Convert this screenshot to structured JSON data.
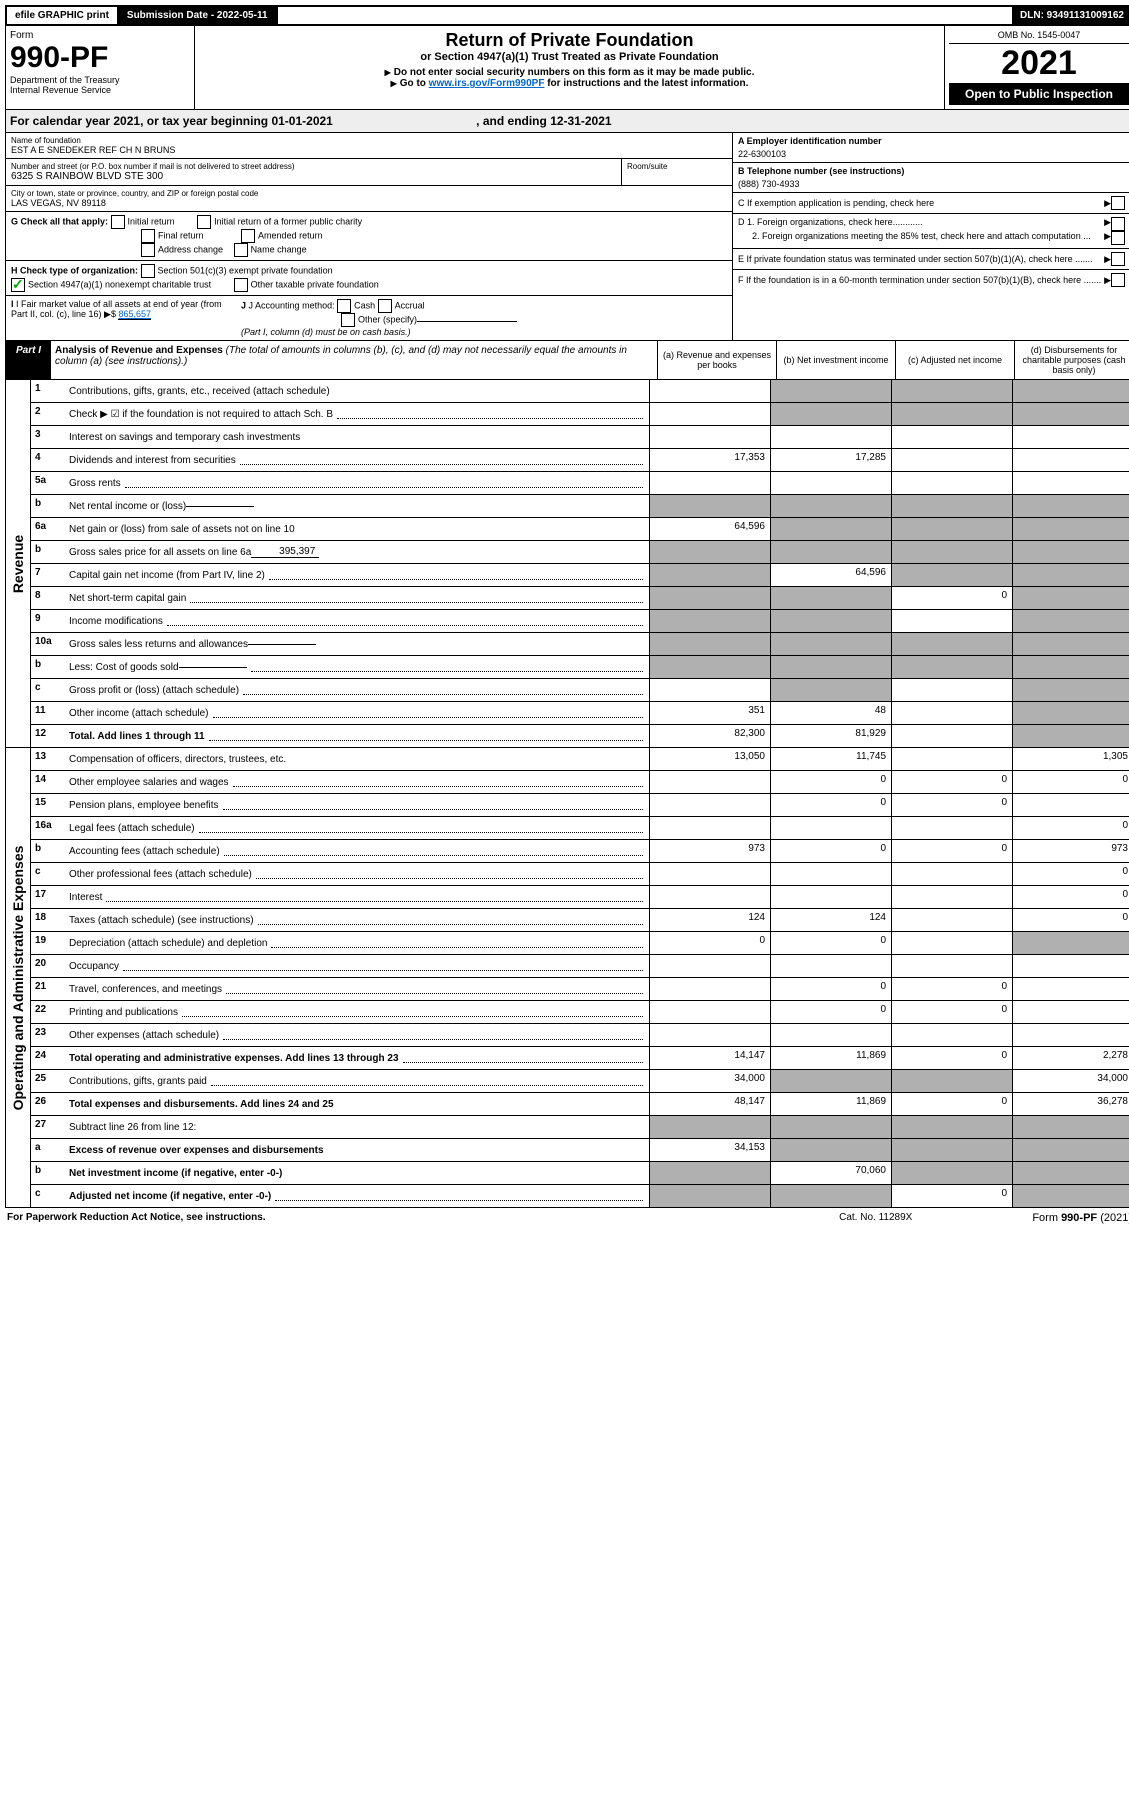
{
  "top": {
    "efile": "efile GRAPHIC print",
    "submission_label": "Submission Date - 2022-05-11",
    "dln": "DLN: 93491131009162"
  },
  "header": {
    "form_word": "Form",
    "form_number": "990-PF",
    "dept": "Department of the Treasury",
    "irs": "Internal Revenue Service",
    "title": "Return of Private Foundation",
    "subtitle": "or Section 4947(a)(1) Trust Treated as Private Foundation",
    "note1": "Do not enter social security numbers on this form as it may be made public.",
    "note2_pre": "Go to ",
    "note2_link": "www.irs.gov/Form990PF",
    "note2_post": " for instructions and the latest information.",
    "omb": "OMB No. 1545-0047",
    "year": "2021",
    "open": "Open to Public Inspection"
  },
  "cal_year": {
    "pre": "For calendar year 2021, or tax year beginning ",
    "begin": "01-01-2021",
    "mid": " , and ending ",
    "end": "12-31-2021"
  },
  "info": {
    "name_label": "Name of foundation",
    "name": "EST A E SNEDEKER REF CH N BRUNS",
    "addr_label": "Number and street (or P.O. box number if mail is not delivered to street address)",
    "addr": "6325 S RAINBOW BLVD STE 300",
    "room_label": "Room/suite",
    "city_label": "City or town, state or province, country, and ZIP or foreign postal code",
    "city": "LAS VEGAS, NV  89118",
    "ein_label": "A Employer identification number",
    "ein": "22-6300103",
    "phone_label": "B Telephone number (see instructions)",
    "phone": "(888) 730-4933",
    "c": "C If exemption application is pending, check here",
    "d1": "D 1. Foreign organizations, check here............",
    "d2": "2. Foreign organizations meeting the 85% test, check here and attach computation ...",
    "e": "E If private foundation status was terminated under section 507(b)(1)(A), check here .......",
    "f": "F If the foundation is in a 60-month termination under section 507(b)(1)(B), check here .......",
    "g_label": "G Check all that apply:",
    "g_opts": [
      "Initial return",
      "Initial return of a former public charity",
      "Final return",
      "Amended return",
      "Address change",
      "Name change"
    ],
    "h_label": "H Check type of organization:",
    "h_opts": [
      "Section 501(c)(3) exempt private foundation",
      "Section 4947(a)(1) nonexempt charitable trust",
      "Other taxable private foundation"
    ],
    "i_label": "I Fair market value of all assets at end of year (from Part II, col. (c), line 16)",
    "i_val": "865,657",
    "j_label": "J Accounting method:",
    "j_opts": [
      "Cash",
      "Accrual",
      "Other (specify)"
    ],
    "j_note": "(Part I, column (d) must be on cash basis.)"
  },
  "part1": {
    "label": "Part I",
    "title": "Analysis of Revenue and Expenses",
    "title_note": " (The total of amounts in columns (b), (c), and (d) may not necessarily equal the amounts in column (a) (see instructions).)",
    "col_a": "(a) Revenue and expenses per books",
    "col_b": "(b) Net investment income",
    "col_c": "(c) Adjusted net income",
    "col_d": "(d) Disbursements for charitable purposes (cash basis only)"
  },
  "sides": {
    "revenue": "Revenue",
    "expenses": "Operating and Administrative Expenses"
  },
  "rows": {
    "r1": {
      "n": "1",
      "l": "Contributions, gifts, grants, etc., received (attach schedule)",
      "a": "",
      "b": "",
      "c": "",
      "d": "",
      "bs": true,
      "cs": true,
      "ds": true
    },
    "r2": {
      "n": "2",
      "l": "Check ▶ ☑ if the foundation is not required to attach Sch. B",
      "a": "",
      "b": "",
      "c": "",
      "d": "",
      "bs": true,
      "cs": true,
      "ds": true,
      "dots": true
    },
    "r3": {
      "n": "3",
      "l": "Interest on savings and temporary cash investments",
      "a": "",
      "b": "",
      "c": "",
      "d": ""
    },
    "r4": {
      "n": "4",
      "l": "Dividends and interest from securities",
      "a": "17,353",
      "b": "17,285",
      "c": "",
      "d": "",
      "dots": true
    },
    "r5a": {
      "n": "5a",
      "l": "Gross rents",
      "a": "",
      "b": "",
      "c": "",
      "d": "",
      "dots": true
    },
    "r5b": {
      "n": "b",
      "l": "Net rental income or (loss)",
      "a": "",
      "b": "",
      "c": "",
      "d": "",
      "as": true,
      "bs": true,
      "cs": true,
      "ds": true,
      "inline": ""
    },
    "r6a": {
      "n": "6a",
      "l": "Net gain or (loss) from sale of assets not on line 10",
      "a": "64,596",
      "b": "",
      "c": "",
      "d": "",
      "bs": true,
      "cs": true,
      "ds": true
    },
    "r6b": {
      "n": "b",
      "l": "Gross sales price for all assets on line 6a",
      "a": "",
      "b": "",
      "c": "",
      "d": "",
      "as": true,
      "bs": true,
      "cs": true,
      "ds": true,
      "inline": "395,397"
    },
    "r7": {
      "n": "7",
      "l": "Capital gain net income (from Part IV, line 2)",
      "a": "",
      "b": "64,596",
      "c": "",
      "d": "",
      "as": true,
      "cs": true,
      "ds": true,
      "dots": true
    },
    "r8": {
      "n": "8",
      "l": "Net short-term capital gain",
      "a": "",
      "b": "",
      "c": "0",
      "d": "",
      "as": true,
      "bs": true,
      "ds": true,
      "dots": true
    },
    "r9": {
      "n": "9",
      "l": "Income modifications",
      "a": "",
      "b": "",
      "c": "",
      "d": "",
      "as": true,
      "bs": true,
      "ds": true,
      "dots": true
    },
    "r10a": {
      "n": "10a",
      "l": "Gross sales less returns and allowances",
      "a": "",
      "b": "",
      "c": "",
      "d": "",
      "as": true,
      "bs": true,
      "cs": true,
      "ds": true,
      "inline": ""
    },
    "r10b": {
      "n": "b",
      "l": "Less: Cost of goods sold",
      "a": "",
      "b": "",
      "c": "",
      "d": "",
      "as": true,
      "bs": true,
      "cs": true,
      "ds": true,
      "inline": "",
      "dots": true
    },
    "r10c": {
      "n": "c",
      "l": "Gross profit or (loss) (attach schedule)",
      "a": "",
      "b": "",
      "c": "",
      "d": "",
      "bs": true,
      "ds": true,
      "dots": true
    },
    "r11": {
      "n": "11",
      "l": "Other income (attach schedule)",
      "a": "351",
      "b": "48",
      "c": "",
      "d": "",
      "ds": true,
      "dots": true
    },
    "r12": {
      "n": "12",
      "l": "Total. Add lines 1 through 11",
      "a": "82,300",
      "b": "81,929",
      "c": "",
      "d": "",
      "bold": true,
      "ds": true,
      "dots": true
    },
    "r13": {
      "n": "13",
      "l": "Compensation of officers, directors, trustees, etc.",
      "a": "13,050",
      "b": "11,745",
      "c": "",
      "d": "1,305"
    },
    "r14": {
      "n": "14",
      "l": "Other employee salaries and wages",
      "a": "",
      "b": "0",
      "c": "0",
      "d": "0",
      "dots": true
    },
    "r15": {
      "n": "15",
      "l": "Pension plans, employee benefits",
      "a": "",
      "b": "0",
      "c": "0",
      "d": "",
      "dots": true
    },
    "r16a": {
      "n": "16a",
      "l": "Legal fees (attach schedule)",
      "a": "",
      "b": "",
      "c": "",
      "d": "0",
      "dots": true
    },
    "r16b": {
      "n": "b",
      "l": "Accounting fees (attach schedule)",
      "a": "973",
      "b": "0",
      "c": "0",
      "d": "973",
      "dots": true
    },
    "r16c": {
      "n": "c",
      "l": "Other professional fees (attach schedule)",
      "a": "",
      "b": "",
      "c": "",
      "d": "0",
      "dots": true
    },
    "r17": {
      "n": "17",
      "l": "Interest",
      "a": "",
      "b": "",
      "c": "",
      "d": "0",
      "dots": true
    },
    "r18": {
      "n": "18",
      "l": "Taxes (attach schedule) (see instructions)",
      "a": "124",
      "b": "124",
      "c": "",
      "d": "0",
      "dots": true
    },
    "r19": {
      "n": "19",
      "l": "Depreciation (attach schedule) and depletion",
      "a": "0",
      "b": "0",
      "c": "",
      "d": "",
      "ds": true,
      "dots": true
    },
    "r20": {
      "n": "20",
      "l": "Occupancy",
      "a": "",
      "b": "",
      "c": "",
      "d": "",
      "dots": true
    },
    "r21": {
      "n": "21",
      "l": "Travel, conferences, and meetings",
      "a": "",
      "b": "0",
      "c": "0",
      "d": "",
      "dots": true
    },
    "r22": {
      "n": "22",
      "l": "Printing and publications",
      "a": "",
      "b": "0",
      "c": "0",
      "d": "",
      "dots": true
    },
    "r23": {
      "n": "23",
      "l": "Other expenses (attach schedule)",
      "a": "",
      "b": "",
      "c": "",
      "d": "",
      "dots": true
    },
    "r24": {
      "n": "24",
      "l": "Total operating and administrative expenses. Add lines 13 through 23",
      "a": "14,147",
      "b": "11,869",
      "c": "0",
      "d": "2,278",
      "bold": true,
      "dots": true
    },
    "r25": {
      "n": "25",
      "l": "Contributions, gifts, grants paid",
      "a": "34,000",
      "b": "",
      "c": "",
      "d": "34,000",
      "bs": true,
      "cs": true,
      "dots": true
    },
    "r26": {
      "n": "26",
      "l": "Total expenses and disbursements. Add lines 24 and 25",
      "a": "48,147",
      "b": "11,869",
      "c": "0",
      "d": "36,278",
      "bold": true
    },
    "r27": {
      "n": "27",
      "l": "Subtract line 26 from line 12:",
      "a": "",
      "b": "",
      "c": "",
      "d": "",
      "as": true,
      "bs": true,
      "cs": true,
      "ds": true
    },
    "r27a": {
      "n": "a",
      "l": "Excess of revenue over expenses and disbursements",
      "a": "34,153",
      "b": "",
      "c": "",
      "d": "",
      "bold": true,
      "bs": true,
      "cs": true,
      "ds": true
    },
    "r27b": {
      "n": "b",
      "l": "Net investment income (if negative, enter -0-)",
      "a": "",
      "b": "70,060",
      "c": "",
      "d": "",
      "bold": true,
      "as": true,
      "cs": true,
      "ds": true
    },
    "r27c": {
      "n": "c",
      "l": "Adjusted net income (if negative, enter -0-)",
      "a": "",
      "b": "",
      "c": "0",
      "d": "",
      "bold": true,
      "as": true,
      "bs": true,
      "ds": true,
      "dots": true
    }
  },
  "revenue_keys": [
    "r1",
    "r2",
    "r3",
    "r4",
    "r5a",
    "r5b",
    "r6a",
    "r6b",
    "r7",
    "r8",
    "r9",
    "r10a",
    "r10b",
    "r10c",
    "r11",
    "r12"
  ],
  "expense_keys": [
    "r13",
    "r14",
    "r15",
    "r16a",
    "r16b",
    "r16c",
    "r17",
    "r18",
    "r19",
    "r20",
    "r21",
    "r22",
    "r23",
    "r24",
    "r25",
    "r26",
    "r27",
    "r27a",
    "r27b",
    "r27c"
  ],
  "footer": {
    "left": "For Paperwork Reduction Act Notice, see instructions.",
    "mid": "Cat. No. 11289X",
    "right": "Form 990-PF (2021)"
  }
}
